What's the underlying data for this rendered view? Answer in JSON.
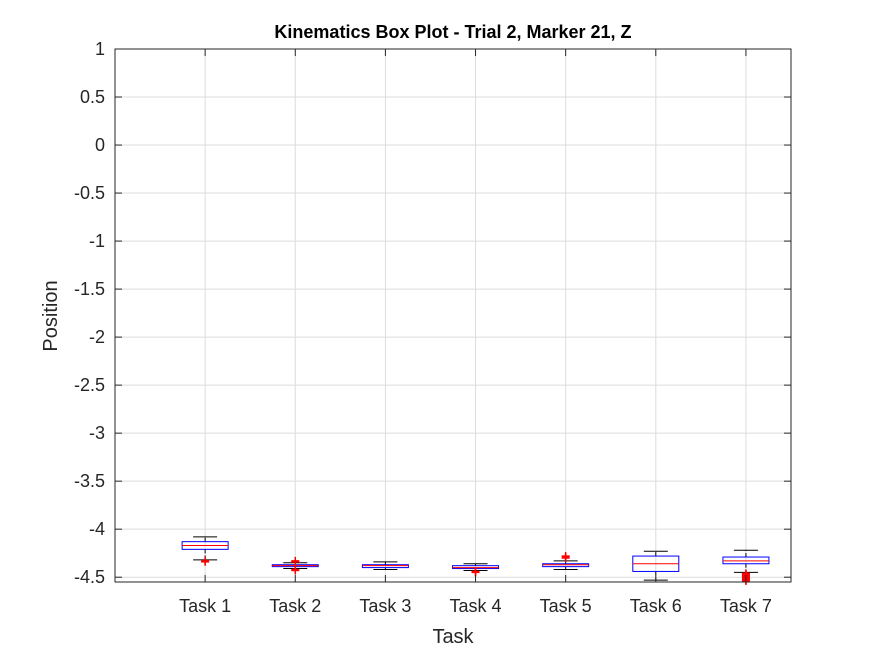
{
  "chart_data": {
    "type": "box",
    "title": "Kinematics Box Plot - Trial 2, Marker 21, Z",
    "xlabel": "Task",
    "ylabel": "Position",
    "ylim": [
      -4.55,
      1
    ],
    "yticks": [
      "1",
      "0.5",
      "0",
      "-0.5",
      "-1",
      "-1.5",
      "-2",
      "-2.5",
      "-3",
      "-3.5",
      "-4",
      "-4.5"
    ],
    "ytick_values": [
      1,
      0.5,
      0,
      -0.5,
      -1,
      -1.5,
      -2,
      -2.5,
      -3,
      -3.5,
      -4,
      -4.5
    ],
    "grid": true,
    "categories": [
      "Task 1",
      "Task 2",
      "Task 3",
      "Task 4",
      "Task 5",
      "Task 6",
      "Task 7"
    ],
    "boxes": [
      {
        "whisker_low": -4.32,
        "q1": -4.21,
        "median": -4.17,
        "q3": -4.13,
        "whisker_high": -4.08,
        "outliers": [
          -4.33,
          -4.34
        ]
      },
      {
        "whisker_low": -4.41,
        "q1": -4.39,
        "median": -4.38,
        "q3": -4.37,
        "whisker_high": -4.35,
        "outliers": [
          -4.33,
          -4.34,
          -4.42,
          -4.43
        ]
      },
      {
        "whisker_low": -4.42,
        "q1": -4.4,
        "median": -4.38,
        "q3": -4.37,
        "whisker_high": -4.34,
        "outliers": []
      },
      {
        "whisker_low": -4.43,
        "q1": -4.41,
        "median": -4.4,
        "q3": -4.38,
        "whisker_high": -4.36,
        "outliers": [
          -4.44,
          -4.45
        ]
      },
      {
        "whisker_low": -4.42,
        "q1": -4.39,
        "median": -4.37,
        "q3": -4.36,
        "whisker_high": -4.33,
        "outliers": [
          -4.28,
          -4.29,
          -4.3
        ]
      },
      {
        "whisker_low": -4.53,
        "q1": -4.44,
        "median": -4.36,
        "q3": -4.28,
        "whisker_high": -4.23,
        "outliers": []
      },
      {
        "whisker_low": -4.45,
        "q1": -4.36,
        "median": -4.33,
        "q3": -4.29,
        "whisker_high": -4.22,
        "outliers": [
          -4.46,
          -4.47,
          -4.48,
          -4.49,
          -4.5,
          -4.51,
          -4.52,
          -4.53,
          -4.54
        ]
      }
    ],
    "colors": {
      "box": "#0000ff",
      "median": "#ff0000",
      "whisker": "#000000",
      "outlier": "#ff0000",
      "grid": "#dcdcdc",
      "axis": "#262626"
    }
  }
}
